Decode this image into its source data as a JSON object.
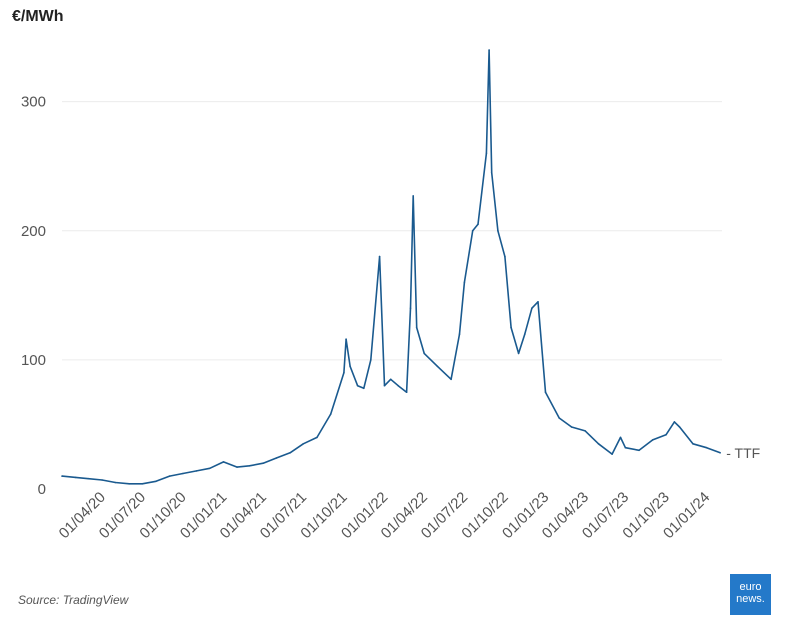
{
  "chart": {
    "unit_label": "€/MWh",
    "source": "Source: TradingView",
    "logo_line1": "euro",
    "logo_line2": "news."
  },
  "colors": {
    "line": "#1a5a8f",
    "grid": "#ececec",
    "logo": "#2479c9"
  },
  "chart_data": {
    "type": "line",
    "title": "",
    "xlabel": "",
    "ylabel": "€/MWh",
    "ylim": [
      0,
      340
    ],
    "yticks": [
      0,
      100,
      200,
      300
    ],
    "xticks": [
      "01/04/20",
      "01/07/20",
      "01/10/20",
      "01/01/21",
      "01/04/21",
      "01/07/21",
      "01/10/21",
      "01/01/22",
      "01/04/22",
      "01/07/22",
      "01/10/22",
      "01/01/23",
      "01/04/23",
      "01/07/23",
      "01/10/23",
      "01/01/24"
    ],
    "grid": true,
    "series": [
      {
        "name": "TTF",
        "points": [
          [
            "2020-01-01",
            10
          ],
          [
            "2020-02-01",
            9
          ],
          [
            "2020-03-01",
            8
          ],
          [
            "2020-04-01",
            7
          ],
          [
            "2020-05-01",
            5
          ],
          [
            "2020-06-01",
            4
          ],
          [
            "2020-07-01",
            4
          ],
          [
            "2020-08-01",
            6
          ],
          [
            "2020-09-01",
            10
          ],
          [
            "2020-10-01",
            12
          ],
          [
            "2020-11-01",
            14
          ],
          [
            "2020-12-01",
            16
          ],
          [
            "2021-01-01",
            21
          ],
          [
            "2021-02-01",
            17
          ],
          [
            "2021-03-01",
            18
          ],
          [
            "2021-04-01",
            20
          ],
          [
            "2021-05-01",
            24
          ],
          [
            "2021-06-01",
            28
          ],
          [
            "2021-07-01",
            35
          ],
          [
            "2021-08-01",
            40
          ],
          [
            "2021-09-01",
            58
          ],
          [
            "2021-10-01",
            90
          ],
          [
            "2021-10-06",
            116
          ],
          [
            "2021-10-15",
            95
          ],
          [
            "2021-11-01",
            80
          ],
          [
            "2021-11-15",
            78
          ],
          [
            "2021-12-01",
            100
          ],
          [
            "2021-12-21",
            180
          ],
          [
            "2022-01-01",
            80
          ],
          [
            "2022-01-15",
            85
          ],
          [
            "2022-02-01",
            80
          ],
          [
            "2022-02-20",
            75
          ],
          [
            "2022-03-01",
            140
          ],
          [
            "2022-03-07",
            227
          ],
          [
            "2022-03-15",
            125
          ],
          [
            "2022-04-01",
            105
          ],
          [
            "2022-05-01",
            95
          ],
          [
            "2022-06-01",
            85
          ],
          [
            "2022-06-20",
            120
          ],
          [
            "2022-07-01",
            160
          ],
          [
            "2022-07-20",
            200
          ],
          [
            "2022-08-01",
            205
          ],
          [
            "2022-08-20",
            260
          ],
          [
            "2022-08-26",
            340
          ],
          [
            "2022-09-01",
            245
          ],
          [
            "2022-09-15",
            200
          ],
          [
            "2022-10-01",
            180
          ],
          [
            "2022-10-15",
            125
          ],
          [
            "2022-11-01",
            105
          ],
          [
            "2022-11-15",
            120
          ],
          [
            "2022-12-01",
            140
          ],
          [
            "2022-12-15",
            145
          ],
          [
            "2023-01-01",
            75
          ],
          [
            "2023-02-01",
            55
          ],
          [
            "2023-03-01",
            48
          ],
          [
            "2023-04-01",
            45
          ],
          [
            "2023-05-01",
            35
          ],
          [
            "2023-06-01",
            27
          ],
          [
            "2023-06-20",
            40
          ],
          [
            "2023-07-01",
            32
          ],
          [
            "2023-08-01",
            30
          ],
          [
            "2023-09-01",
            38
          ],
          [
            "2023-10-01",
            42
          ],
          [
            "2023-10-20",
            52
          ],
          [
            "2023-11-01",
            48
          ],
          [
            "2023-12-01",
            35
          ],
          [
            "2024-01-01",
            32
          ],
          [
            "2024-02-01",
            28
          ]
        ]
      }
    ]
  }
}
